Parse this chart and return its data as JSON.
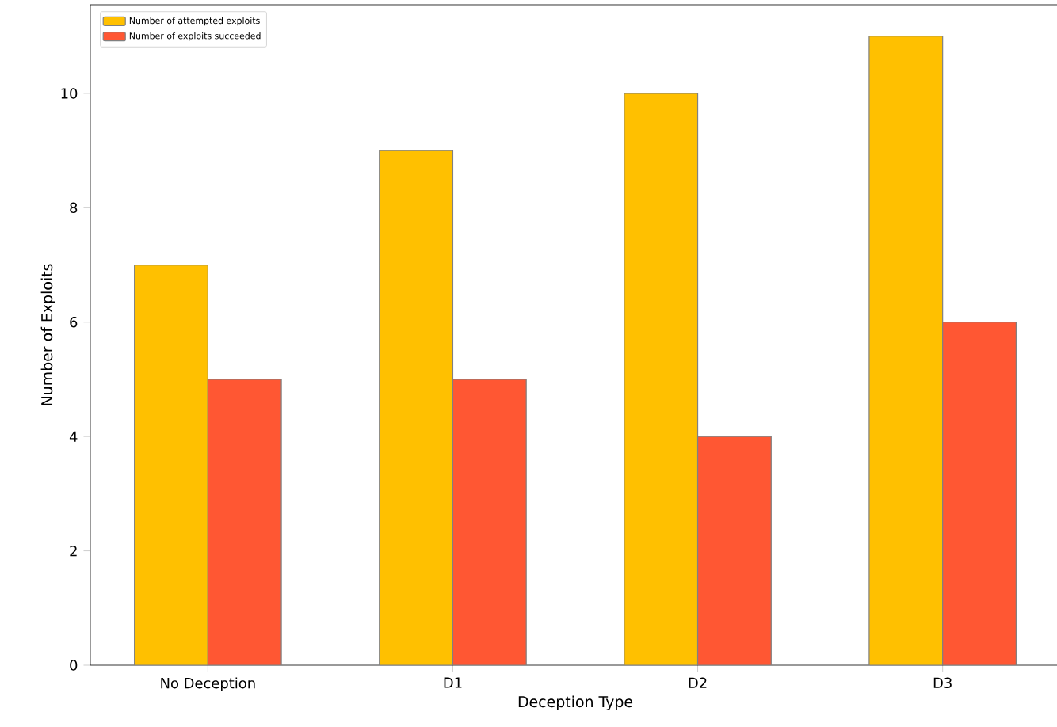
{
  "chart_data": {
    "type": "bar",
    "xlabel": "Deception Type",
    "ylabel": "Number of Exploits",
    "categories": [
      "No Deception",
      "D1",
      "D2",
      "D3"
    ],
    "series": [
      {
        "name": "Number of attempted exploits",
        "color": "#ffc000",
        "values": [
          7,
          9,
          10,
          11
        ]
      },
      {
        "name": "Number of exploits succeeded",
        "color": "#ff5733",
        "values": [
          5,
          5,
          4,
          6
        ]
      }
    ],
    "ylim": [
      0,
      11.55
    ],
    "yticks": [
      0,
      2,
      4,
      6,
      8,
      10
    ],
    "legend": "top left",
    "grid": false
  }
}
